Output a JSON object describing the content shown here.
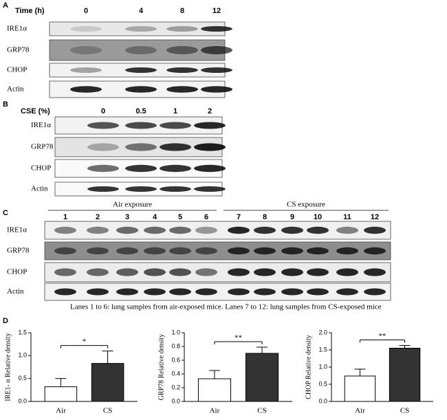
{
  "panels": [
    {
      "label": "A",
      "axis_label": "Time (h)",
      "lanes": [
        "0",
        "4",
        "8",
        "12"
      ],
      "rows": [
        "IRE1α",
        "GRP78",
        "CHOP",
        "Actin"
      ]
    },
    {
      "label": "B",
      "axis_label": "CSE (%)",
      "lanes": [
        "0",
        "0.5",
        "1",
        "2"
      ],
      "rows": [
        "IRE1α",
        "GRP78",
        "CHOP",
        "Actin"
      ]
    },
    {
      "label": "C",
      "groups": [
        "Air exposure",
        "CS exposure"
      ],
      "lanes": [
        "1",
        "2",
        "3",
        "4",
        "5",
        "6",
        "7",
        "8",
        "9",
        "10",
        "11",
        "12"
      ],
      "rows": [
        "IRE1α",
        "GRP78",
        "CHOP",
        "Actin"
      ],
      "caption": "Lanes 1 to 6:  lung samples from air-exposed mice. Lanes 7 to 12: lung samples from CS-exposed mice"
    }
  ],
  "panel_d_label": "D",
  "chart_data": [
    {
      "type": "bar",
      "y_label": "IRE1- α Relative density",
      "categories": [
        "Air",
        "CS"
      ],
      "values": [
        0.32,
        0.83
      ],
      "errors": [
        0.18,
        0.27
      ],
      "colors": [
        "#ffffff",
        "#333333"
      ],
      "ylim": [
        0,
        1.5
      ],
      "yticks": [
        {
          "value": 0,
          "label": "0.0"
        },
        0.5,
        {
          "value": 1,
          "label": "1.0"
        },
        1.5
      ],
      "annotation": "*"
    },
    {
      "type": "bar",
      "y_label": "GRP78 Relative density",
      "categories": [
        "Air",
        "CS"
      ],
      "values": [
        0.33,
        0.7
      ],
      "errors": [
        0.12,
        0.09
      ],
      "colors": [
        "#ffffff",
        "#333333"
      ],
      "ylim": [
        0,
        1.0
      ],
      "yticks": [
        {
          "value": 0,
          "label": "0.0"
        },
        0.2,
        0.4,
        0.6,
        0.8,
        {
          "value": 1,
          "label": "1.0"
        }
      ],
      "annotation": "**"
    },
    {
      "type": "bar",
      "y_label": "CHOP Relative density",
      "categories": [
        "Air",
        "CS"
      ],
      "values": [
        0.74,
        1.55
      ],
      "errors": [
        0.2,
        0.08
      ],
      "colors": [
        "#ffffff",
        "#333333"
      ],
      "ylim": [
        0,
        2.0
      ],
      "yticks": [
        {
          "value": 0,
          "label": "0.0"
        },
        0.5,
        {
          "value": 1,
          "label": "1.0"
        },
        1.5,
        {
          "value": 2,
          "label": "2.0"
        }
      ],
      "annotation": "**"
    }
  ]
}
